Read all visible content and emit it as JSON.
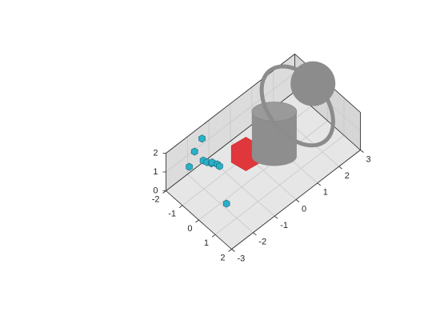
{
  "chart_data": {
    "type": "scatter3d",
    "axes": {
      "x": {
        "lim": [
          -2,
          2
        ],
        "ticks": [
          -2,
          -1,
          0,
          1,
          2
        ],
        "labels": [
          "-2",
          "-1",
          "0",
          "1",
          "2"
        ]
      },
      "y": {
        "lim": [
          -3,
          3
        ],
        "ticks": [
          -3,
          -2,
          -1,
          0,
          1,
          2,
          3
        ],
        "labels": [
          "-3",
          "-2",
          "-1",
          "0",
          "1",
          "2",
          "3"
        ]
      },
      "z": {
        "lim": [
          0,
          2
        ],
        "ticks": [
          0,
          1,
          2
        ],
        "labels": [
          "0",
          "1",
          "2"
        ]
      },
      "grid": true,
      "box": true
    },
    "scatter": {
      "color": "#2bb0c8",
      "edge_color": "#1a6f80",
      "points": [
        {
          "x": -1.5,
          "y": -2.3,
          "z": 1.05
        },
        {
          "x": -1.7,
          "y": -1.9,
          "z": 1.35
        },
        {
          "x": -1.3,
          "y": -1.8,
          "z": 1.1
        },
        {
          "x": -1.2,
          "y": -1.7,
          "z": 1.0
        },
        {
          "x": -1.0,
          "y": -1.65,
          "z": 1.05
        },
        {
          "x": -1.15,
          "y": -1.5,
          "z": 0.85
        },
        {
          "x": -0.9,
          "y": -1.45,
          "z": 0.9
        },
        {
          "x": -0.7,
          "y": -1.5,
          "z": 1.0
        },
        {
          "x": -1.9,
          "y": -1.4,
          "z": 1.45
        },
        {
          "x": 0.25,
          "y": -1.9,
          "z": 0.1
        }
      ]
    },
    "shapes": [
      {
        "kind": "hexagon",
        "color": "#e0373c",
        "center": {
          "x": -0.4,
          "y": -0.5,
          "z": 1.0
        }
      },
      {
        "kind": "cylinder",
        "color": "#8c8c8c",
        "center": {
          "x": -0.5,
          "y": 0.9,
          "z": 0.8
        }
      },
      {
        "kind": "torus",
        "color": "#8c8c8c",
        "center": {
          "x": -0.4,
          "y": 1.9,
          "z": 1.45
        }
      },
      {
        "kind": "sphere",
        "color": "#8c8c8c",
        "center": {
          "x": -0.5,
          "y": 2.7,
          "z": 1.85
        }
      }
    ]
  }
}
